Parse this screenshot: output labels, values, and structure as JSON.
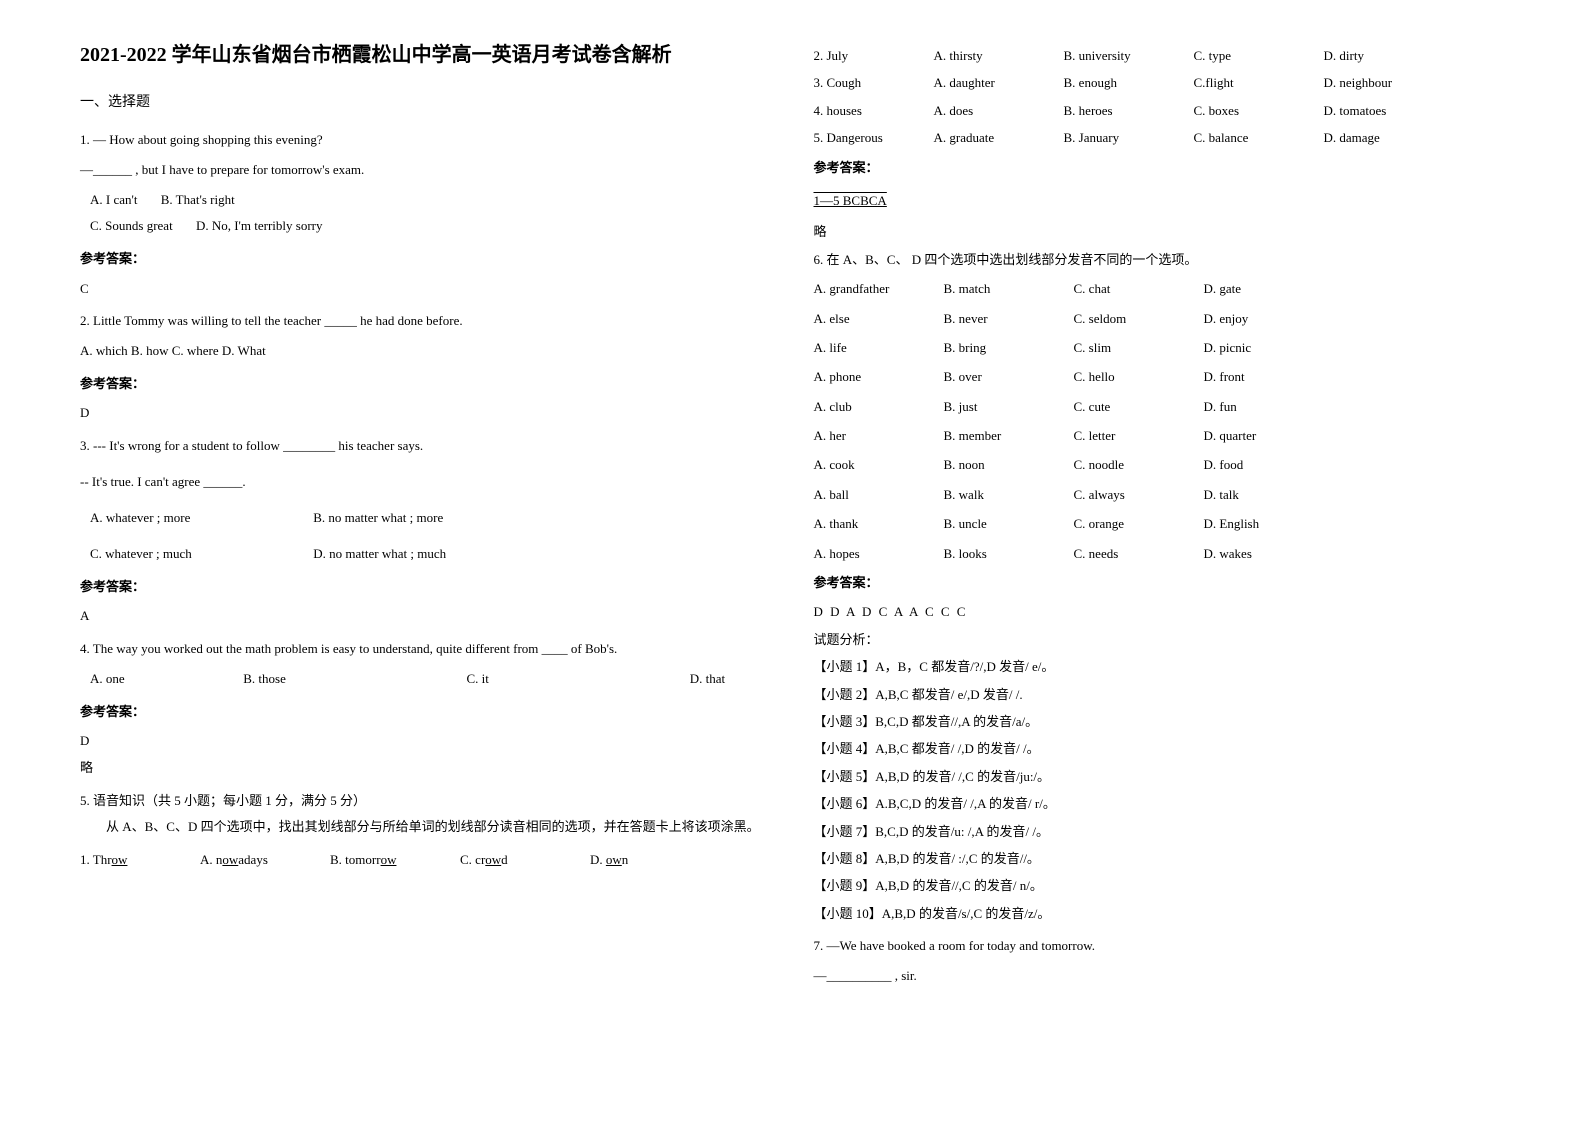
{
  "left": {
    "title": "2021-2022 学年山东省烟台市栖霞松山中学高一英语月考试卷含解析",
    "section": "一、选择题",
    "q1": {
      "line1": "1. — How about going shopping this evening?",
      "line2": "—______ , but I have to prepare for tomorrow's exam.",
      "optA": "A. I can't",
      "optB": "B. That's right",
      "optC": "C. Sounds great",
      "optD": "D. No, I'm terribly sorry",
      "answerLabel": "参考答案：",
      "answer": "C"
    },
    "q2": {
      "text": "2. Little Tommy was willing to tell the teacher _____ he had done before.",
      "options": "A. which   B. how   C. where   D. What",
      "answerLabel": "参考答案：",
      "answer": "D"
    },
    "q3": {
      "line1": "3. --- It's wrong for a student to follow ________ his teacher says.",
      "line2": "-- It's true. I can't agree ______.",
      "optA": "A. whatever ; more",
      "optB": "B. no matter what ; more",
      "optC": "C. whatever ; much",
      "optD": "D. no matter what ; much",
      "answerLabel": "参考答案：",
      "answer": "A"
    },
    "q4": {
      "text": "4. The way you worked out the math problem is easy to understand, quite different from ____ of Bob's.",
      "optA": "A. one",
      "optB": "B. those",
      "optC": "C. it",
      "optD": "D. that",
      "answerLabel": "参考答案：",
      "answer": "D",
      "extra": "略"
    },
    "q5": {
      "header": "5. 语音知识（共 5 小题；每小题 1 分，满分 5 分）",
      "instruction": "从 A、B、C、D 四个选项中，找出其划线部分与所给单词的划线部分读音相同的选项，并在答题卡上将该项涂黑。",
      "row1": {
        "word": "1.  Throw",
        "a": "A.  nowadays",
        "b": "B.  tomorrow",
        "c": "C.  crowd",
        "d": "D.  own"
      }
    }
  },
  "right": {
    "q5rows": {
      "row2": {
        "word": "2.  July",
        "a": "A.  thirsty",
        "b": "B.  university",
        "c": "C.  type",
        "d": "D.  dirty"
      },
      "row3": {
        "word": "3.  Cough",
        "a": "A.  daughter",
        "b": "B.  enough",
        "c": "C.flight",
        "d": "D.  neighbour"
      },
      "row4": {
        "word": "4.  houses",
        "a": "A.  does",
        "b": "B.  heroes",
        "c": "C. boxes",
        "d": "D.  tomatoes"
      },
      "row5": {
        "word": "5.  Dangerous",
        "a": "A.  graduate",
        "b": "B.  January",
        "c": "C.  balance",
        "d": "D.  damage"
      }
    },
    "q5answerLabel": "参考答案：",
    "q5answer": "1—5  BCBCA",
    "q5extra": "略",
    "q6": {
      "header": "6. 在 A、B、C、 D 四个选项中选出划线部分发音不同的一个选项。",
      "rows": [
        {
          "a": "A.  grandfather",
          "b": "B.  match",
          "c": "C.  chat",
          "d": "D.  gate"
        },
        {
          "a": "A.  else",
          "b": "B.  never",
          "c": "C.  seldom",
          "d": "D.  enjoy"
        },
        {
          "a": "A.  life",
          "b": "B.  bring",
          "c": "C.  slim",
          "d": "D.  picnic"
        },
        {
          "a": "A.  phone",
          "b": "B.  over",
          "c": "C.  hello",
          "d": "D.  front"
        },
        {
          "a": "A.  club",
          "b": "B.  just",
          "c": "C.  cute",
          "d": "D.  fun"
        },
        {
          "a": "A.  her",
          "b": "B.  member",
          "c": "C.  letter",
          "d": "D.  quarter"
        },
        {
          "a": "A.  cook",
          "b": "B.  noon",
          "c": "C.  noodle",
          "d": "D.  food"
        },
        {
          "a": "A.  ball",
          "b": "B.  walk",
          "c": "C.  always",
          "d": "D.  talk"
        },
        {
          "a": "A.  thank",
          "b": "B.  uncle",
          "c": "C.  orange",
          "d": "D.  English"
        },
        {
          "a": "A.  hopes",
          "b": "B.  looks",
          "c": "C.  needs",
          "d": "D.  wakes"
        }
      ],
      "answerLabel": "参考答案：",
      "answer": "D D A D C  A A C C C",
      "analysisLabel": "试题分析：",
      "analysis": [
        "【小题 1】A，B，C 都发音/?/,D 发音/ e/。",
        "【小题 2】A,B,C 都发音/ e/,D 发音/ /.",
        "【小题 3】B,C,D 都发音//,A 的发音/a/。",
        "【小题 4】A,B,C 都发音/ /,D 的发音/ /。",
        "【小题 5】A,B,D 的发音/ /,C 的发音/ju:/。",
        "【小题 6】A.B,C,D 的发音/ /,A 的发音/ r/。",
        "【小题 7】B,C,D 的发音/u: /,A 的发音/ /。",
        "【小题 8】A,B,D 的发音/ :/,C 的发音//。",
        "【小题 9】A,B,D 的发音//,C 的发音/ n/。",
        "【小题 10】A,B,D 的发音/s/,C 的发音/z/。"
      ]
    },
    "q7": {
      "line1": "7. —We have booked a room for today and tomorrow.",
      "line2": "—__________ , sir."
    }
  }
}
